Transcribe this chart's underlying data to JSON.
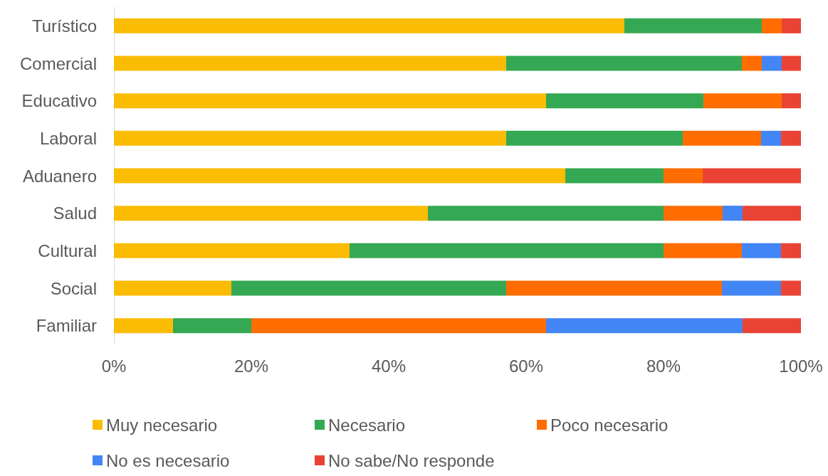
{
  "chart_data": {
    "type": "bar",
    "orientation": "horizontal",
    "stacked": true,
    "categories": [
      "Turístico",
      "Comercial",
      "Educativo",
      "Laboral",
      "Aduanero",
      "Salud",
      "Cultural",
      "Social",
      "Familiar"
    ],
    "series": [
      {
        "name": "Muy necesario",
        "color": "#fbbc04",
        "values": [
          74.3,
          57.1,
          62.9,
          57.1,
          65.7,
          45.7,
          34.3,
          17.1,
          8.6
        ]
      },
      {
        "name": "Necesario",
        "color": "#34a853",
        "values": [
          20,
          34.3,
          22.9,
          25.7,
          14.3,
          34.3,
          45.7,
          40,
          11.4
        ]
      },
      {
        "name": "Poco necesario",
        "color": "#ff6d01",
        "values": [
          2.9,
          2.9,
          11.4,
          11.4,
          5.7,
          8.6,
          11.4,
          31.4,
          42.9
        ]
      },
      {
        "name": "No es necesario",
        "color": "#4285f4",
        "values": [
          0,
          2.9,
          0,
          2.9,
          0,
          2.9,
          5.7,
          8.6,
          28.6
        ]
      },
      {
        "name": "No sabe/No responde",
        "color": "#ea4335",
        "values": [
          2.9,
          2.9,
          2.9,
          2.9,
          14.3,
          8.6,
          2.9,
          2.9,
          8.6
        ]
      }
    ],
    "xlim": [
      0,
      100
    ],
    "xticks": [
      {
        "value": 0,
        "label": "0%"
      },
      {
        "value": 20,
        "label": "20%"
      },
      {
        "value": 40,
        "label": "40%"
      },
      {
        "value": 60,
        "label": "60%"
      },
      {
        "value": 80,
        "label": "80%"
      },
      {
        "value": 100,
        "label": "100%"
      }
    ],
    "grid": false,
    "legend": "bottom"
  }
}
